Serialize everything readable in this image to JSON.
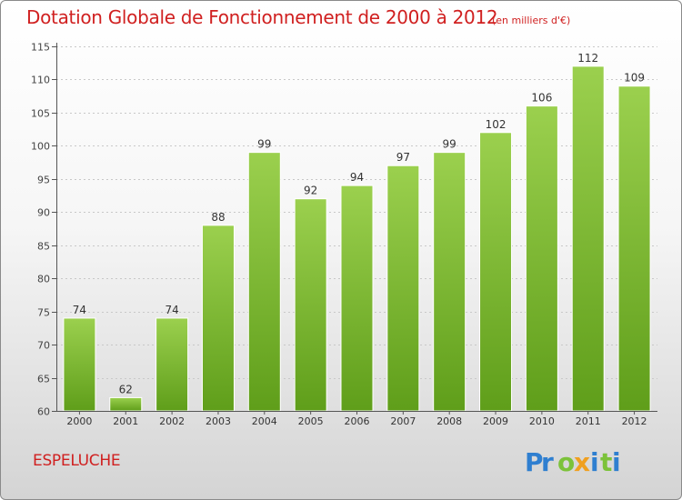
{
  "title": "Dotation Globale de Fonctionnement de 2000 à 2012",
  "unit_note": "(en milliers d'€)",
  "commune": "ESPELUCHE",
  "logo": {
    "letters": [
      {
        "char": "P",
        "color": "#2f7fd0"
      },
      {
        "char": "r",
        "color": "#2f7fd0"
      },
      {
        "char": "o",
        "color": "#7cc23a"
      },
      {
        "char": "x",
        "color": "#f0a020"
      },
      {
        "char": "i",
        "color": "#2f7fd0"
      },
      {
        "char": "t",
        "color": "#7cc23a"
      },
      {
        "char": "i",
        "color": "#2f7fd0"
      }
    ]
  },
  "chart_data": {
    "type": "bar",
    "categories": [
      "2000",
      "2001",
      "2002",
      "2003",
      "2004",
      "2005",
      "2006",
      "2007",
      "2008",
      "2009",
      "2010",
      "2011",
      "2012"
    ],
    "values": [
      74,
      62,
      74,
      88,
      99,
      92,
      94,
      97,
      99,
      102,
      106,
      112,
      109
    ],
    "data_labels": [
      "74",
      "62",
      "74",
      "88",
      "99",
      "92",
      "94",
      "97",
      "99",
      "102",
      "106",
      "112",
      "109"
    ],
    "ylim": [
      60,
      115
    ],
    "yticks": [
      60,
      65,
      70,
      75,
      80,
      85,
      90,
      95,
      100,
      105,
      110,
      115
    ],
    "grid": true,
    "bar_color_top": "#9bd04e",
    "bar_color_bottom": "#5f9e1a"
  }
}
